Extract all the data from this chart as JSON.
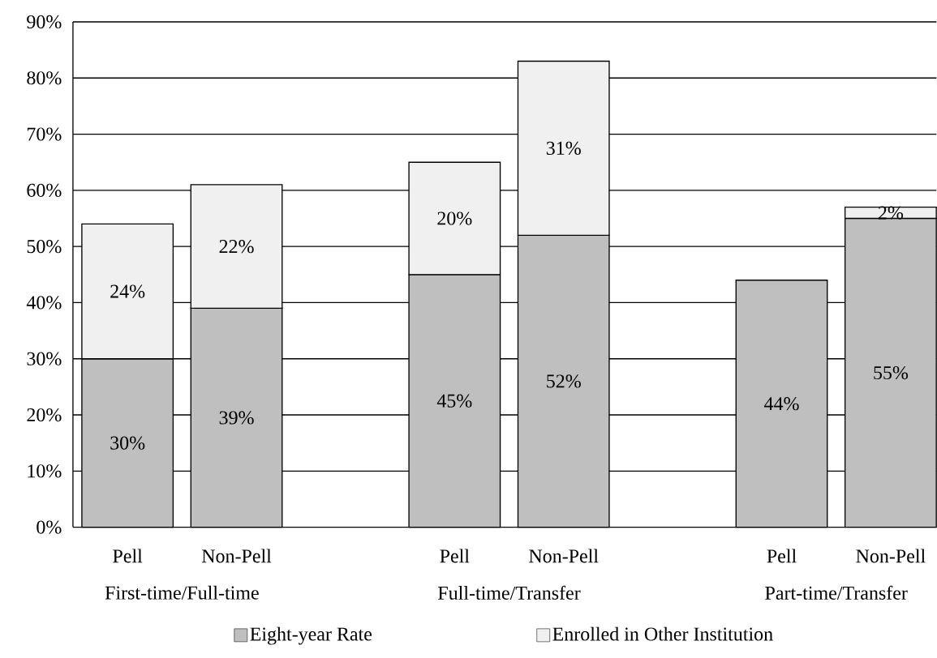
{
  "chart_data": {
    "type": "bar",
    "stacked": true,
    "categories": [
      "Pell",
      "Non-Pell",
      null,
      "Pell",
      "Non-Pell",
      null,
      "Pell",
      "Non-Pell"
    ],
    "series": [
      {
        "name": "Eight-year Rate",
        "color": "#bfbfbf",
        "values": [
          30,
          39,
          null,
          45,
          52,
          null,
          44,
          55
        ],
        "value_labels": [
          "30%",
          "39%",
          null,
          "45%",
          "52%",
          null,
          "44%",
          "55%"
        ]
      },
      {
        "name": "Enrolled in Other Institution",
        "color": "#f0f0f0",
        "values": [
          24,
          22,
          null,
          20,
          31,
          null,
          null,
          2
        ],
        "value_labels": [
          "24%",
          "22%",
          null,
          "20%",
          "31%",
          null,
          null,
          "2%"
        ]
      }
    ],
    "ylim": [
      0,
      90
    ],
    "yticks": [
      {
        "value": 0,
        "label": "0%"
      },
      {
        "value": 10,
        "label": "10%"
      },
      {
        "value": 20,
        "label": "20%"
      },
      {
        "value": 30,
        "label": "30%"
      },
      {
        "value": 40,
        "label": "40%"
      },
      {
        "value": 50,
        "label": "50%"
      },
      {
        "value": 60,
        "label": "60%"
      },
      {
        "value": 70,
        "label": "70%"
      },
      {
        "value": 80,
        "label": "80%"
      },
      {
        "value": 90,
        "label": "90%"
      }
    ],
    "grid": "y",
    "legend": "bottom",
    "annotations": [
      "First-time/Full-time",
      "Full-time/Transfer",
      "Part-time/Transfer"
    ]
  }
}
